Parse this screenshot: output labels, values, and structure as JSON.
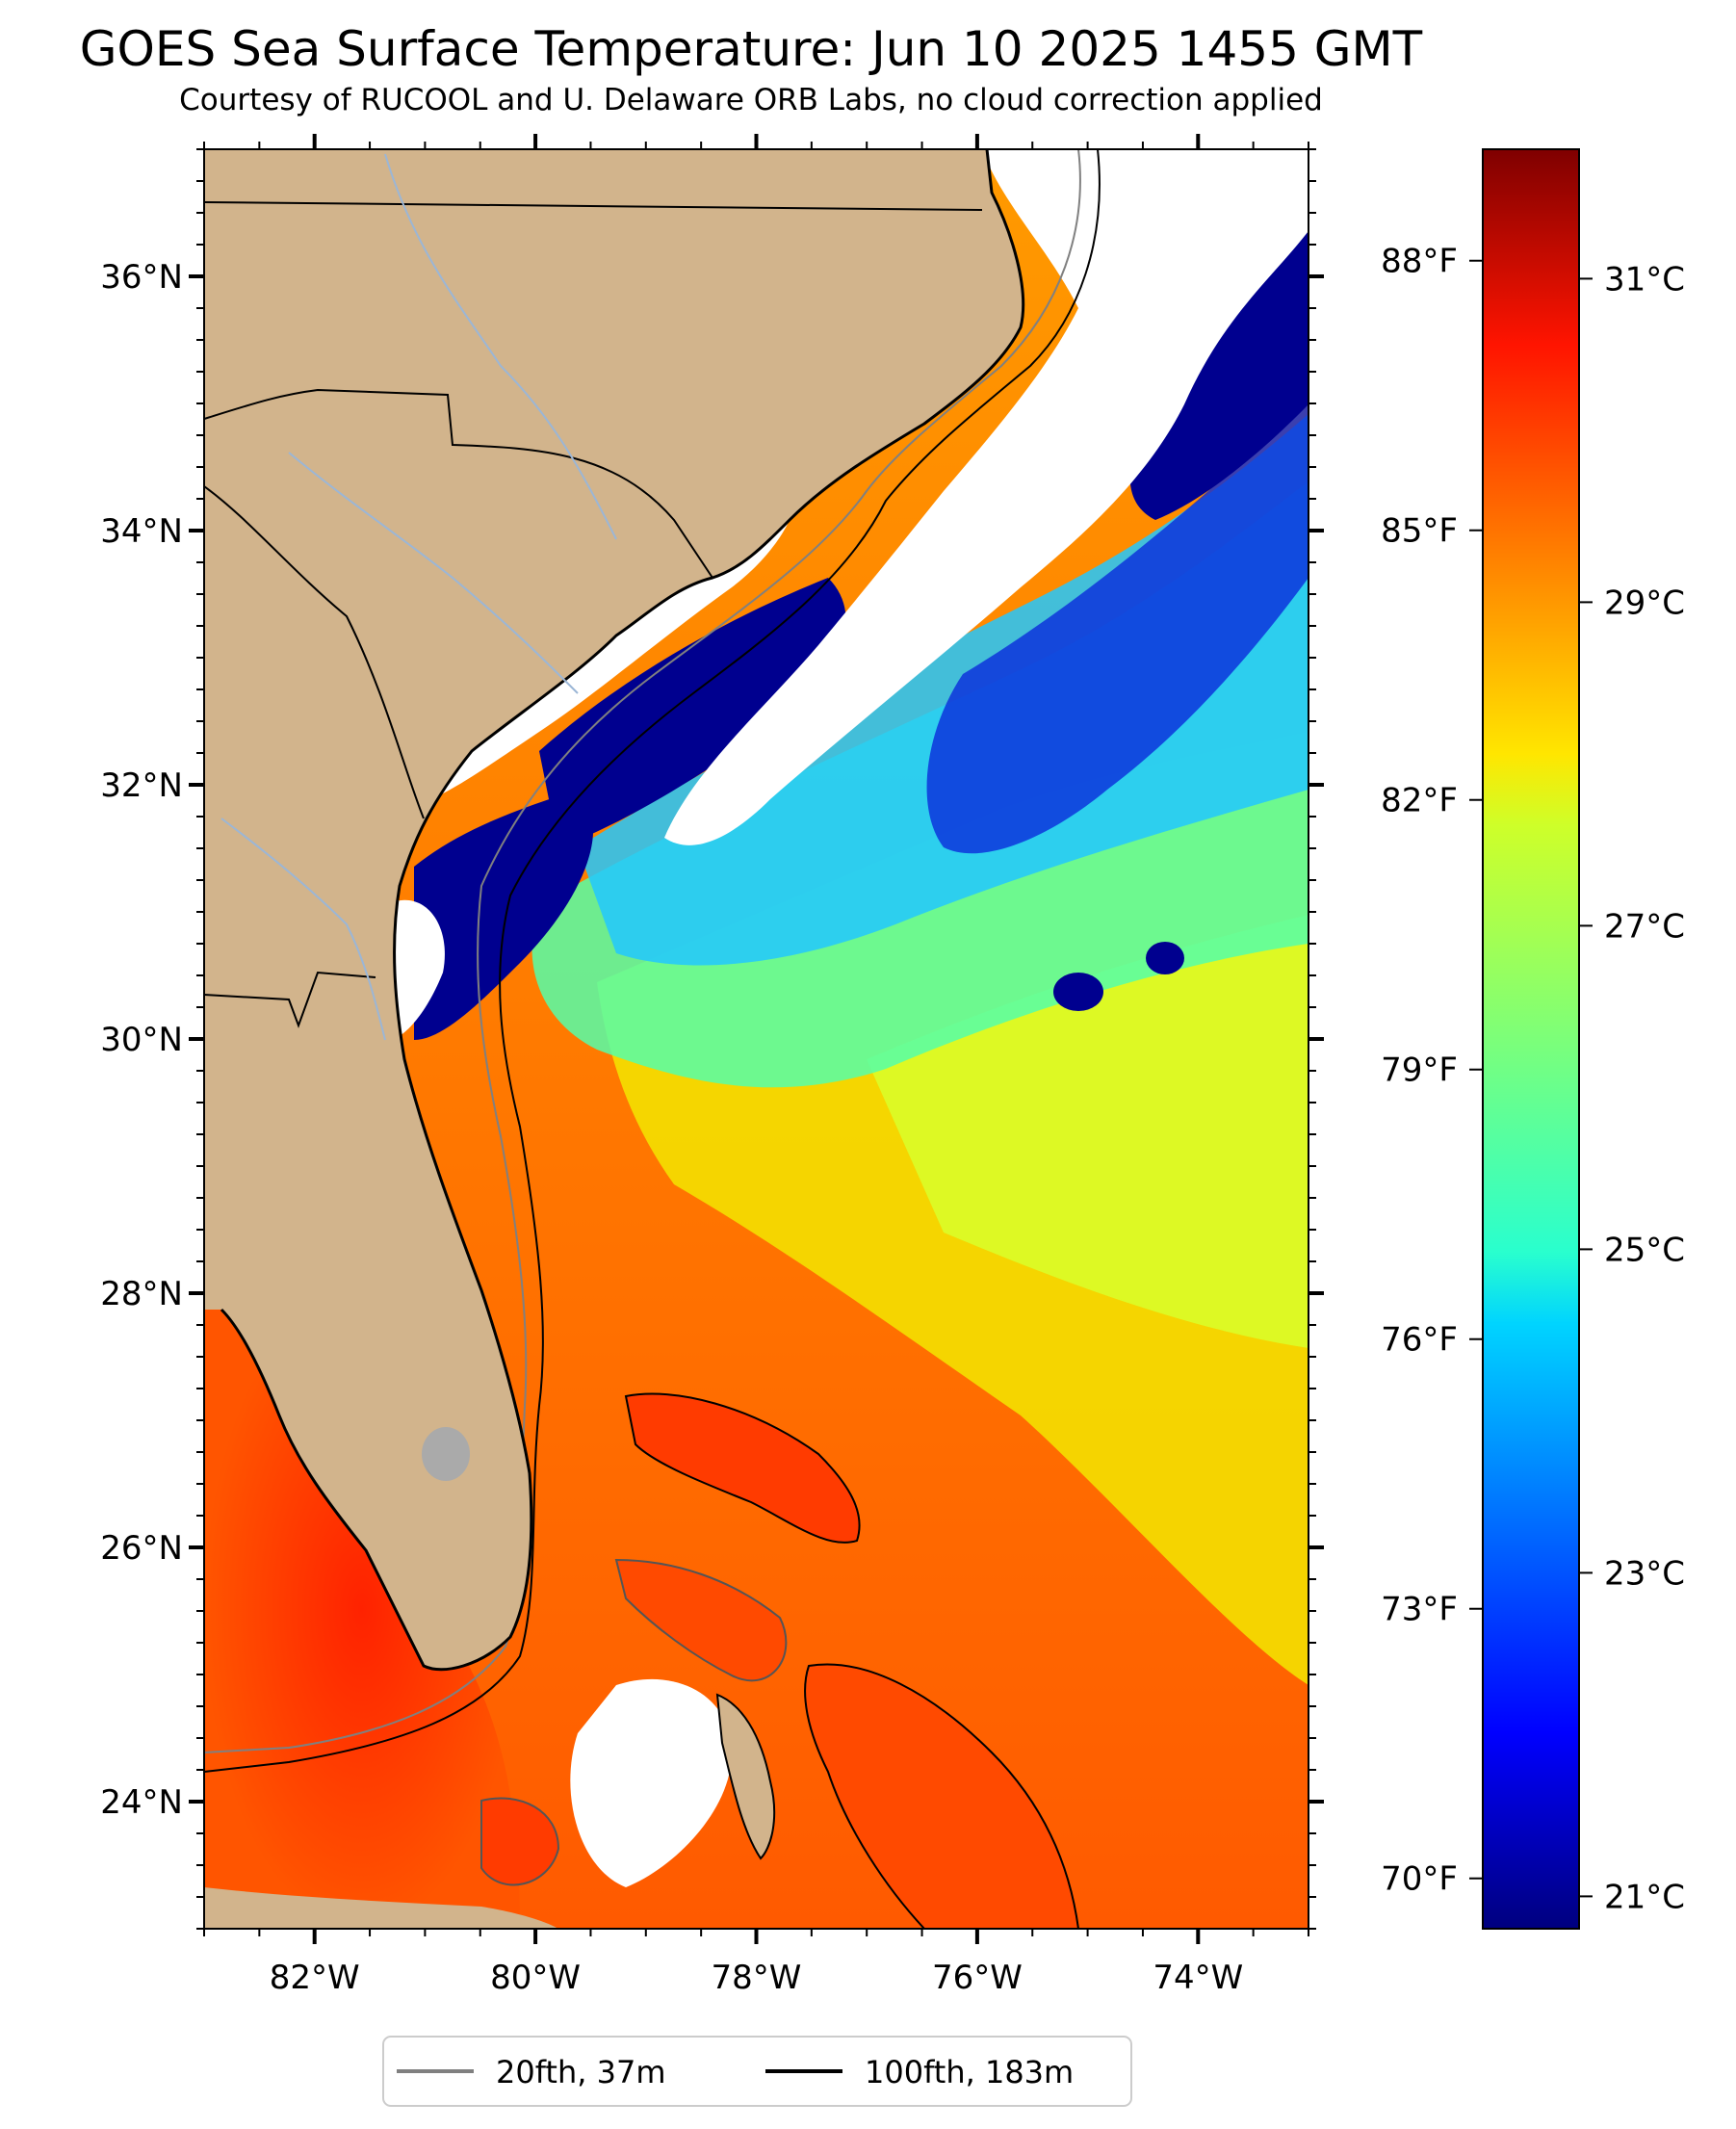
{
  "title": "GOES Sea Surface Temperature: Jun 10 2025 1455 GMT",
  "subtitle": "Courtesy of RUCOOL and U. Delaware ORB Labs, no cloud correction applied",
  "map": {
    "lon_range": [
      -83.0,
      -73.0
    ],
    "lat_range": [
      23.0,
      37.0
    ],
    "lat_labels": [
      "24°N",
      "26°N",
      "28°N",
      "30°N",
      "32°N",
      "34°N",
      "36°N"
    ],
    "lon_labels": [
      "82°W",
      "80°W",
      "78°W",
      "76°W",
      "74°W"
    ],
    "land_color": "#d2b48c",
    "cloud_color": "#ffffff"
  },
  "colorbar": {
    "colormap": "jet",
    "range_c": [
      20.8,
      31.8
    ],
    "celsius_labels": [
      "21°C",
      "23°C",
      "25°C",
      "27°C",
      "29°C",
      "31°C"
    ],
    "fahrenheit_labels": [
      "70°F",
      "73°F",
      "76°F",
      "79°F",
      "82°F",
      "85°F",
      "88°F"
    ]
  },
  "legend": {
    "items": [
      {
        "label": "20fth, 37m",
        "color": "#808080"
      },
      {
        "label": "100fth, 183m",
        "color": "#000000"
      }
    ]
  }
}
